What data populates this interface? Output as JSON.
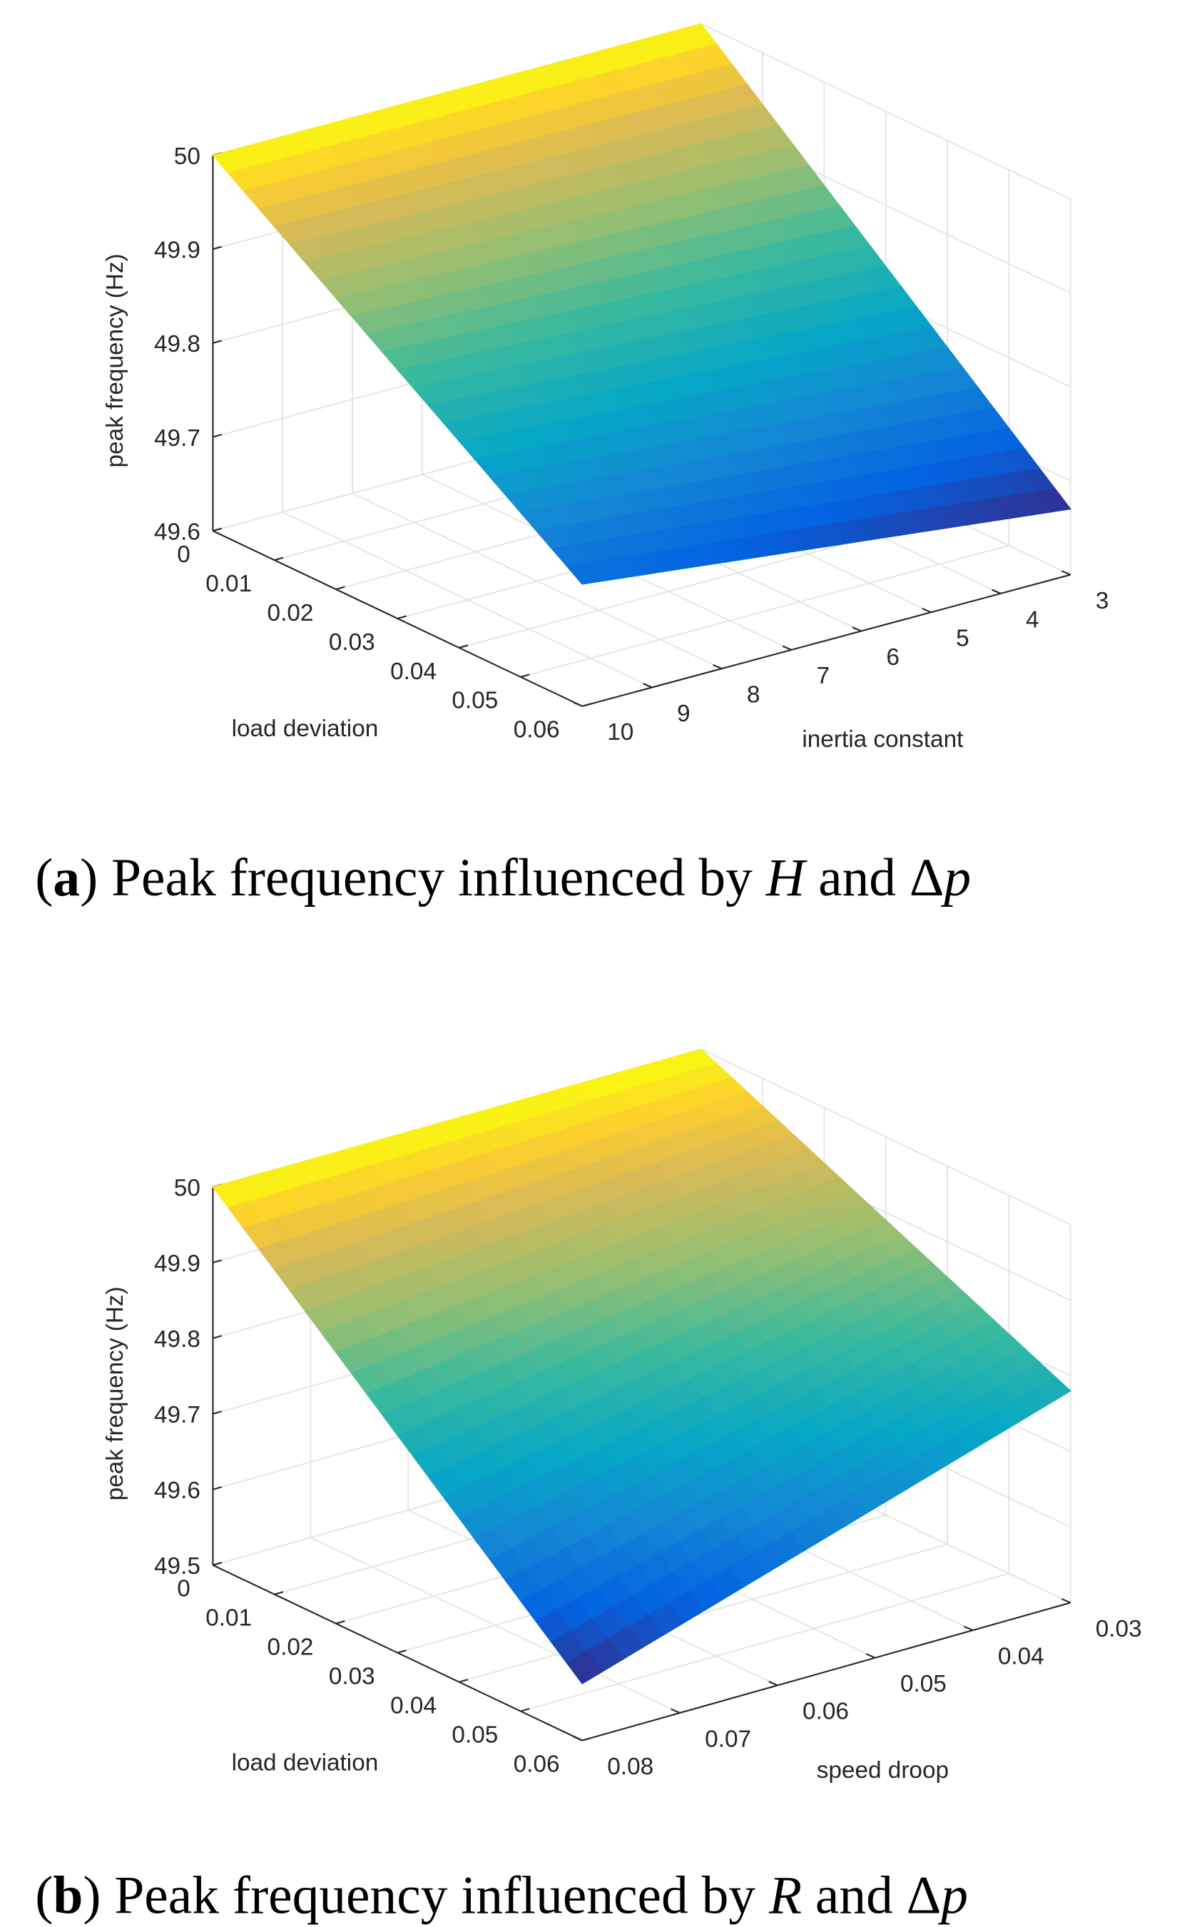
{
  "chart_data": [
    {
      "type": "surface",
      "colormap": "parula",
      "grid": true,
      "xlabel": "load deviation",
      "ylabel": "inertia constant",
      "zlabel": "peak frequency (Hz)",
      "xlim": [
        0,
        0.06
      ],
      "xticks": [
        0,
        0.01,
        0.02,
        0.03,
        0.04,
        0.05,
        0.06
      ],
      "ylim": [
        3,
        10
      ],
      "yticks": [
        3,
        4,
        5,
        6,
        7,
        8,
        9,
        10
      ],
      "zlim": [
        49.6,
        50
      ],
      "zticks": [
        49.6,
        49.7,
        49.8,
        49.9,
        50
      ],
      "x": [
        0,
        0.06
      ],
      "y": [
        3,
        10
      ],
      "z": [
        [
          50,
          50
        ],
        [
          49.67,
          49.73
        ]
      ],
      "caption": [
        "(",
        "a",
        ") Peak frequency influenced by ",
        "H",
        " and  Δ",
        "p"
      ]
    },
    {
      "type": "surface",
      "colormap": "parula",
      "grid": true,
      "xlabel": "load deviation",
      "ylabel": "speed droop",
      "zlabel": "peak frequency (Hz)",
      "xlim": [
        0,
        0.06
      ],
      "xticks": [
        0,
        0.01,
        0.02,
        0.03,
        0.04,
        0.05,
        0.06
      ],
      "ylim": [
        0.03,
        0.08
      ],
      "yticks": [
        0.03,
        0.04,
        0.05,
        0.06,
        0.07,
        0.08
      ],
      "zlim": [
        49.5,
        50
      ],
      "zticks": [
        49.5,
        49.6,
        49.7,
        49.8,
        49.9,
        50
      ],
      "x": [
        0,
        0.06
      ],
      "y": [
        0.03,
        0.08
      ],
      "z": [
        [
          50,
          50
        ],
        [
          49.78,
          49.575
        ]
      ],
      "caption": [
        "(",
        "b",
        ") Peak frequency influenced by ",
        "R",
        " and  Δ",
        "p"
      ]
    }
  ]
}
